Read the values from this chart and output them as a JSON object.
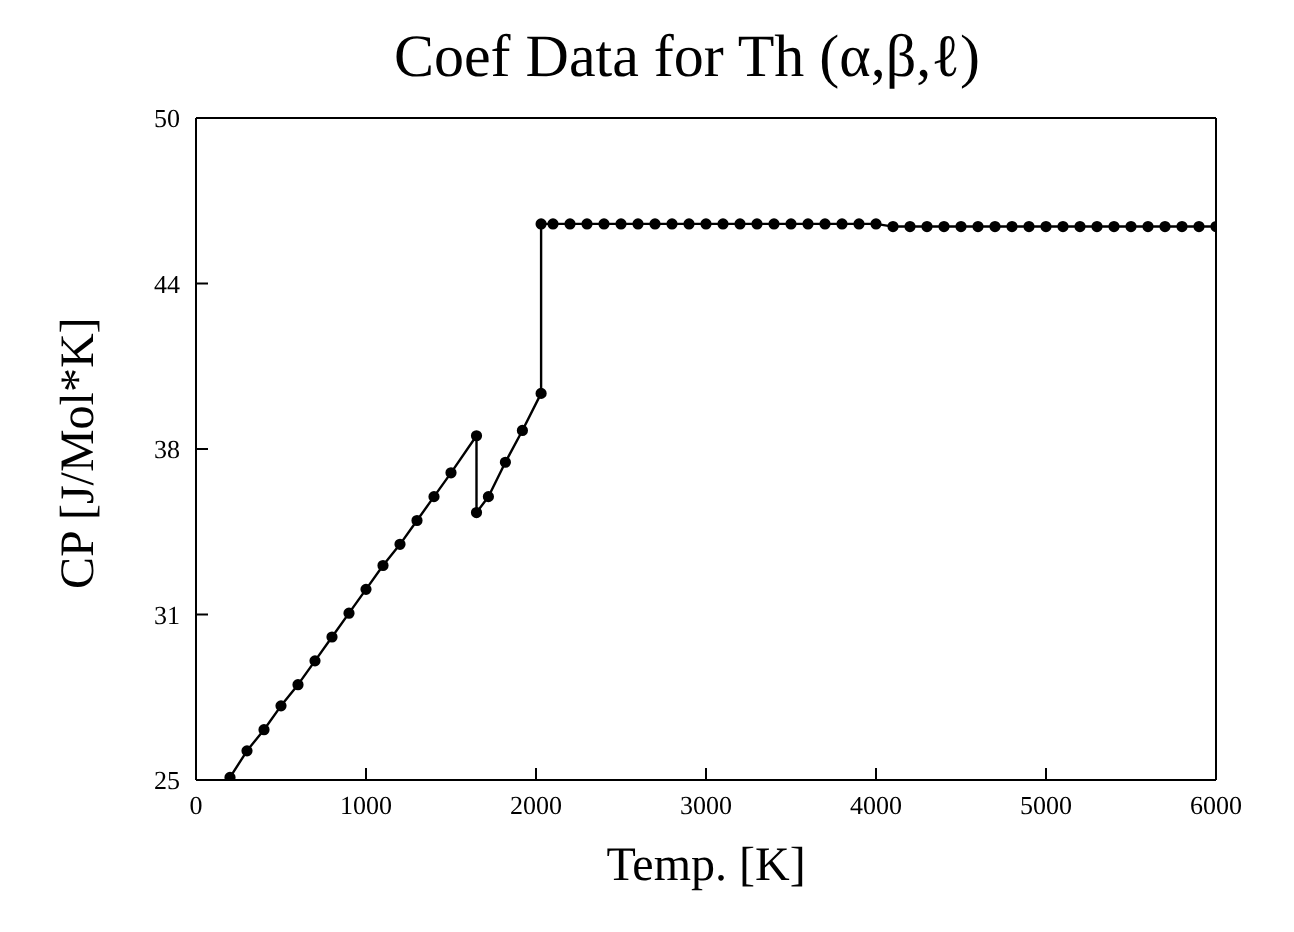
{
  "chart_data": {
    "type": "line",
    "title": "Coef Data for Th (α,β,ℓ)",
    "xlabel": "Temp. [K]",
    "ylabel": "CP [J/Mol*K]",
    "x": [
      200,
      300,
      400,
      500,
      600,
      700,
      800,
      900,
      1000,
      1100,
      1200,
      1300,
      1400,
      1500,
      1650,
      1650,
      1720,
      1820,
      1920,
      2030,
      2030,
      2100,
      2200,
      2300,
      2400,
      2500,
      2600,
      2700,
      2800,
      2900,
      3000,
      3100,
      3200,
      3300,
      3400,
      3500,
      3600,
      3700,
      3800,
      3900,
      4000,
      4100,
      4200,
      4300,
      4400,
      4500,
      4600,
      4700,
      4800,
      4900,
      5000,
      5100,
      5200,
      5300,
      5400,
      5500,
      5600,
      5700,
      5800,
      5900,
      6000
    ],
    "series": [
      {
        "color": "#000000",
        "values": [
          25.1,
          26.1,
          26.9,
          27.8,
          28.6,
          29.5,
          30.4,
          31.3,
          32.2,
          33.1,
          33.9,
          34.8,
          35.7,
          36.6,
          38.0,
          35.1,
          35.7,
          37.0,
          38.2,
          39.6,
          46.0,
          46.0,
          46.0,
          46.0,
          46.0,
          46.0,
          46.0,
          46.0,
          46.0,
          46.0,
          46.0,
          46.0,
          46.0,
          46.0,
          46.0,
          46.0,
          46.0,
          46.0,
          46.0,
          46.0,
          46.0,
          45.9,
          45.9,
          45.9,
          45.9,
          45.9,
          45.9,
          45.9,
          45.9,
          45.9,
          45.9,
          45.9,
          45.9,
          45.9,
          45.9,
          45.9,
          45.9,
          45.9,
          45.9,
          45.9,
          45.9
        ]
      }
    ],
    "xlim": [
      0,
      6000
    ],
    "xticks": [
      0,
      1000,
      2000,
      3000,
      4000,
      5000,
      6000
    ],
    "ylim": [
      25,
      50
    ],
    "yticks": [
      25,
      {
        "value": 31.25,
        "label": "31"
      },
      {
        "value": 37.5,
        "label": "38"
      },
      {
        "value": 43.75,
        "label": "44"
      },
      50
    ],
    "marker": "circle",
    "line_style": "solid",
    "legend": false
  }
}
